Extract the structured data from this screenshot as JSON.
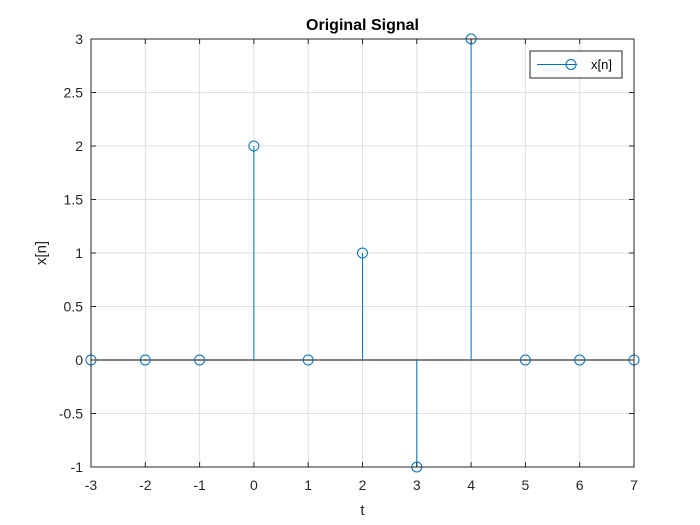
{
  "chart_data": {
    "type": "stem",
    "title": "Original Signal",
    "xlabel": "t",
    "ylabel": "x[n]",
    "xlim": [
      -3,
      7
    ],
    "ylim": [
      -1,
      3
    ],
    "xticks": [
      "-3",
      "-2",
      "-1",
      "0",
      "1",
      "2",
      "3",
      "4",
      "5",
      "6",
      "7"
    ],
    "yticks": [
      "-1",
      "-0.5",
      "0",
      "0.5",
      "1",
      "1.5",
      "2",
      "2.5",
      "3"
    ],
    "grid": true,
    "legend_position": "top-right",
    "series": [
      {
        "name": "x[n]",
        "color": "#0072BD",
        "marker": "circle",
        "x": [
          -3,
          -2,
          -1,
          0,
          1,
          2,
          3,
          4,
          5,
          6,
          7
        ],
        "y": [
          0,
          0,
          0,
          2,
          0,
          1,
          -1,
          3,
          0,
          0,
          0
        ]
      }
    ]
  }
}
